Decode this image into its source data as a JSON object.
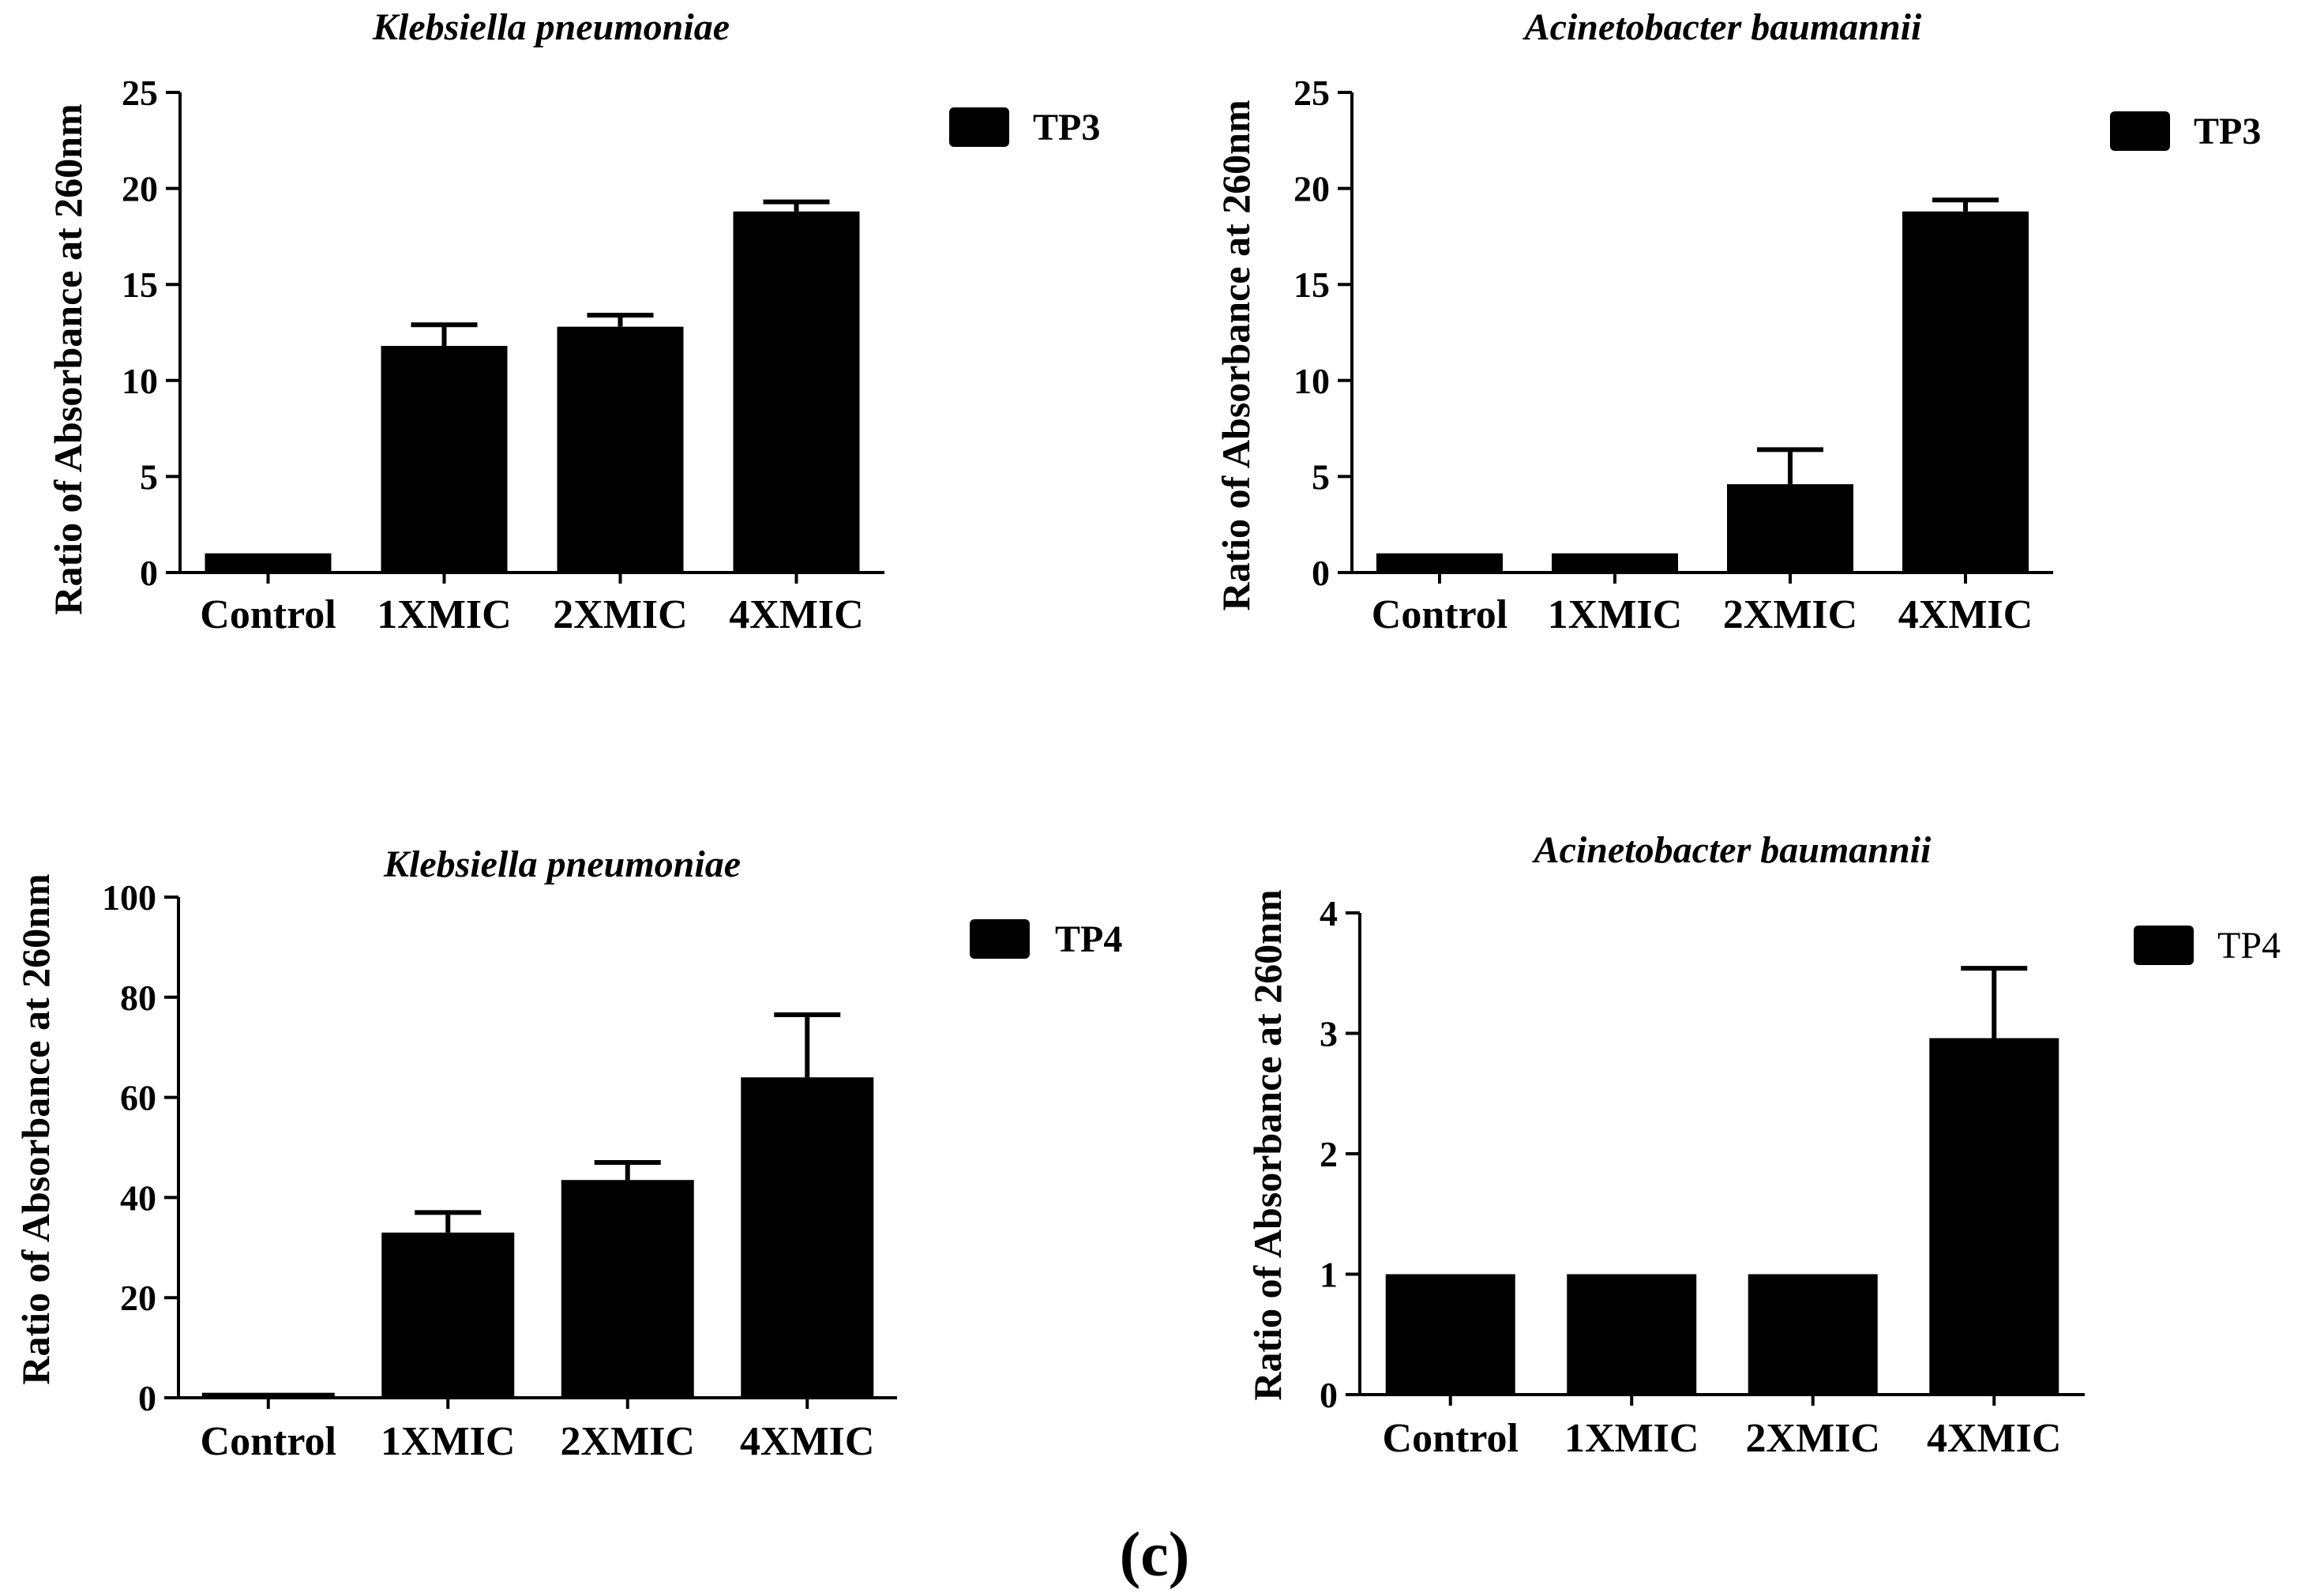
{
  "figure_label": "(c)",
  "chart_data": [
    {
      "type": "bar",
      "title": "Klebsiella pneumoniae",
      "xlabel": "",
      "ylabel": "Ratio of Absorbance at 260nm",
      "categories": [
        "Control",
        "1XMIC",
        "2XMIC",
        "4XMIC"
      ],
      "series": [
        {
          "name": "TP3",
          "values": [
            1.0,
            11.8,
            12.8,
            18.8
          ],
          "errors": [
            0.0,
            1.1,
            0.6,
            0.5
          ]
        }
      ],
      "ylim": [
        0,
        25
      ],
      "yticks": [
        0,
        5,
        10,
        15,
        20,
        25
      ],
      "color": "#000000"
    },
    {
      "type": "bar",
      "title": "Acinetobacter baumannii",
      "xlabel": "",
      "ylabel": "Ratio of Absorbance at 260nm",
      "categories": [
        "Control",
        "1XMIC",
        "2XMIC",
        "4XMIC"
      ],
      "series": [
        {
          "name": "TP3",
          "values": [
            1.0,
            1.0,
            4.6,
            18.8
          ],
          "errors": [
            0.0,
            0.0,
            1.8,
            0.6
          ]
        }
      ],
      "ylim": [
        0,
        25
      ],
      "yticks": [
        0,
        5,
        10,
        15,
        20,
        25
      ],
      "color": "#000000"
    },
    {
      "type": "bar",
      "title": "Klebsiella pneumoniae",
      "xlabel": "",
      "ylabel": "Ratio of Absorbance at 260nm",
      "categories": [
        "Control",
        "1XMIC",
        "2XMIC",
        "4XMIC"
      ],
      "series": [
        {
          "name": "TP4",
          "values": [
            1.0,
            33.0,
            43.5,
            64.0
          ],
          "errors": [
            0.0,
            4.0,
            3.5,
            12.5
          ]
        }
      ],
      "ylim": [
        0,
        100
      ],
      "yticks": [
        0,
        20,
        40,
        60,
        80,
        100
      ],
      "color": "#000000"
    },
    {
      "type": "bar",
      "title": "Acinetobacter baumannii",
      "xlabel": "",
      "ylabel": "Ratio of Absorbance at 260nm",
      "categories": [
        "Control",
        "1XMIC",
        "2XMIC",
        "4XMIC"
      ],
      "series": [
        {
          "name": "TP4",
          "values": [
            1.0,
            1.0,
            1.0,
            2.96
          ],
          "errors": [
            0.0,
            0.0,
            0.0,
            0.58
          ]
        }
      ],
      "ylim": [
        0,
        4
      ],
      "yticks": [
        0,
        1,
        2,
        3,
        4
      ],
      "color": "#000000"
    }
  ]
}
